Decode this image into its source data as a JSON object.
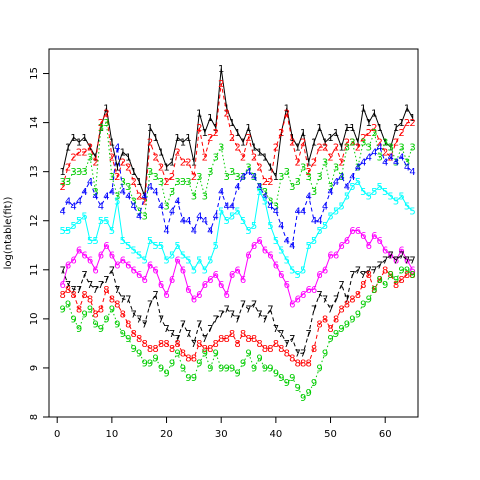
{
  "chart_data": {
    "type": "line",
    "title": "",
    "xlabel": "",
    "ylabel": "log(ntable(fit))",
    "xlim": [
      -1.5,
      66
    ],
    "ylim": [
      8,
      15.5
    ],
    "xticks": [
      0,
      10,
      20,
      30,
      40,
      50,
      60
    ],
    "yticks": [
      8,
      9,
      10,
      11,
      12,
      13,
      14,
      15
    ],
    "x": [
      1,
      2,
      3,
      4,
      5,
      6,
      7,
      8,
      9,
      10,
      11,
      12,
      13,
      14,
      15,
      16,
      17,
      18,
      19,
      20,
      21,
      22,
      23,
      24,
      25,
      26,
      27,
      28,
      29,
      30,
      31,
      32,
      33,
      34,
      35,
      36,
      37,
      38,
      39,
      40,
      41,
      42,
      43,
      44,
      45,
      46,
      47,
      48,
      49,
      50,
      51,
      52,
      53,
      54,
      55,
      56,
      57,
      58,
      59,
      60,
      61,
      62,
      63,
      64,
      65
    ],
    "series": [
      {
        "name": "1",
        "color": "#000000",
        "line_style": "solid",
        "values": [
          13.0,
          13.5,
          13.7,
          13.6,
          13.7,
          13.5,
          13.3,
          13.9,
          14.3,
          13.6,
          13.1,
          13.4,
          13.3,
          13.0,
          12.8,
          12.5,
          13.9,
          13.7,
          13.4,
          13.1,
          13.2,
          13.7,
          13.6,
          13.7,
          13.2,
          14.2,
          13.8,
          14.1,
          13.9,
          15.1,
          14.3,
          14.0,
          13.8,
          13.6,
          13.9,
          13.5,
          13.4,
          13.3,
          13.1,
          12.9,
          13.8,
          14.3,
          13.7,
          13.5,
          13.8,
          13.2,
          13.6,
          13.9,
          13.6,
          13.7,
          13.8,
          13.5,
          13.9,
          13.9,
          13.6,
          14.3,
          14.0,
          14.2,
          13.9,
          13.6,
          13.5,
          13.9,
          14.0,
          14.3,
          14.1
        ]
      },
      {
        "name": "2",
        "color": "#ff0000",
        "line_style": "dashed",
        "values": [
          12.7,
          13.1,
          13.3,
          13.4,
          13.4,
          13.5,
          13.2,
          14.0,
          14.2,
          13.3,
          12.9,
          13.2,
          13.1,
          12.8,
          12.5,
          12.4,
          13.6,
          13.3,
          13.1,
          12.8,
          12.9,
          13.4,
          13.2,
          13.2,
          12.9,
          13.9,
          13.3,
          13.7,
          13.8,
          14.8,
          14.2,
          13.7,
          13.5,
          13.3,
          13.7,
          13.3,
          13.1,
          12.8,
          12.8,
          13.5,
          13.8,
          14.2,
          13.6,
          13.2,
          13.6,
          13.0,
          13.2,
          13.5,
          13.5,
          13.3,
          13.5,
          13.2,
          13.6,
          13.6,
          13.5,
          13.7,
          13.8,
          13.9,
          13.6,
          13.4,
          13.3,
          13.6,
          13.8,
          14.0,
          14.0
        ]
      },
      {
        "name": "3",
        "color": "#00cc00",
        "line_style": "dotted",
        "values": [
          12.8,
          12.8,
          13.0,
          13.0,
          13.0,
          13.3,
          12.6,
          13.9,
          14.0,
          12.9,
          12.5,
          12.8,
          12.7,
          12.4,
          12.2,
          12.1,
          13.0,
          12.9,
          12.8,
          12.3,
          12.6,
          12.8,
          12.8,
          12.8,
          12.5,
          12.9,
          12.5,
          13.0,
          13.3,
          13.5,
          12.9,
          13.0,
          12.9,
          12.9,
          13.1,
          12.9,
          12.7,
          12.6,
          12.4,
          12.3,
          12.9,
          13.0,
          12.7,
          12.8,
          13.1,
          12.9,
          12.6,
          12.9,
          13.2,
          12.7,
          13.1,
          12.9,
          13.5,
          13.6,
          13.1,
          13.6,
          13.5,
          13.8,
          13.3,
          13.6,
          13.5,
          13.2,
          13.5,
          13.2,
          13.5
        ]
      },
      {
        "name": "4",
        "color": "#0000ff",
        "line_style": "dashed",
        "values": [
          12.2,
          12.4,
          12.3,
          12.4,
          12.6,
          12.8,
          12.5,
          12.3,
          12.5,
          12.6,
          13.5,
          12.6,
          12.5,
          12.3,
          12.1,
          12.5,
          12.7,
          12.6,
          12.3,
          11.8,
          12.2,
          12.4,
          12.0,
          12.0,
          11.8,
          12.1,
          12.0,
          11.8,
          12.1,
          12.6,
          12.3,
          12.3,
          12.7,
          12.9,
          13.0,
          12.9,
          12.7,
          12.5,
          12.3,
          12.2,
          11.9,
          11.6,
          11.5,
          12.2,
          12.2,
          12.5,
          12.0,
          12.0,
          12.3,
          12.6,
          12.8,
          12.9,
          12.7,
          12.9,
          13.1,
          13.2,
          13.3,
          13.4,
          13.5,
          13.2,
          13.3,
          13.2,
          13.3,
          13.1,
          13.0
        ]
      },
      {
        "name": "5",
        "color": "#00ffff",
        "line_style": "solid",
        "values": [
          11.8,
          11.8,
          11.9,
          12.0,
          12.1,
          11.6,
          11.6,
          12.0,
          12.0,
          11.8,
          12.4,
          11.6,
          11.5,
          11.4,
          11.3,
          11.2,
          11.6,
          11.5,
          11.5,
          11.2,
          11.3,
          11.5,
          11.3,
          11.2,
          11.0,
          11.2,
          11.0,
          11.2,
          11.5,
          12.2,
          12.0,
          12.1,
          12.2,
          12.0,
          11.8,
          11.9,
          12.6,
          12.4,
          11.9,
          11.6,
          11.4,
          11.2,
          11.0,
          10.9,
          11.0,
          11.5,
          11.6,
          11.8,
          11.9,
          12.1,
          12.2,
          12.3,
          12.5,
          12.7,
          12.8,
          12.6,
          12.5,
          12.6,
          12.7,
          12.6,
          12.5,
          12.4,
          12.5,
          12.3,
          12.2
        ]
      },
      {
        "name": "6",
        "color": "#ff00ff",
        "line_style": "solid",
        "values": [
          10.7,
          11.1,
          11.2,
          11.4,
          11.3,
          11.2,
          11.0,
          11.3,
          11.5,
          11.3,
          11.1,
          11.2,
          11.1,
          11.0,
          10.9,
          10.8,
          11.1,
          11.0,
          10.7,
          10.5,
          10.8,
          11.2,
          11.0,
          10.6,
          10.4,
          10.5,
          10.7,
          10.8,
          10.9,
          10.7,
          10.5,
          10.9,
          11.0,
          10.8,
          11.3,
          11.5,
          11.6,
          11.4,
          11.3,
          11.1,
          10.9,
          10.7,
          10.3,
          10.4,
          10.5,
          10.6,
          10.6,
          10.9,
          11.0,
          11.3,
          11.3,
          11.5,
          11.6,
          11.8,
          11.8,
          11.7,
          11.5,
          11.7,
          11.6,
          11.4,
          11.3,
          11.2,
          11.4,
          11.2,
          11.0
        ]
      },
      {
        "name": "7",
        "color": "#000000",
        "line_style": "dashed",
        "values": [
          11.0,
          10.7,
          10.6,
          10.6,
          10.9,
          10.7,
          10.6,
          10.7,
          10.8,
          11.0,
          10.6,
          10.4,
          10.4,
          10.1,
          10.0,
          9.9,
          10.3,
          10.5,
          10.0,
          9.8,
          9.7,
          9.6,
          9.9,
          9.7,
          9.5,
          9.9,
          9.6,
          9.8,
          10.0,
          10.1,
          10.2,
          10.1,
          10.0,
          10.3,
          10.2,
          10.3,
          10.1,
          10.0,
          10.2,
          9.8,
          9.7,
          9.5,
          9.6,
          9.3,
          9.3,
          9.7,
          10.2,
          10.5,
          10.4,
          10.2,
          10.4,
          10.7,
          10.4,
          10.9,
          11.0,
          10.9,
          11.0,
          11.0,
          11.1,
          11.2,
          11.3,
          11.2,
          11.3,
          11.2,
          11.2
        ]
      },
      {
        "name": "8",
        "color": "#ff0000",
        "line_style": "dashed",
        "values": [
          10.5,
          10.6,
          10.5,
          10.2,
          10.5,
          10.4,
          10.1,
          10.2,
          10.6,
          10.4,
          10.3,
          10.1,
          9.9,
          9.7,
          9.6,
          9.5,
          9.4,
          9.4,
          9.5,
          9.5,
          9.4,
          9.5,
          9.3,
          9.2,
          9.2,
          9.5,
          9.4,
          9.4,
          9.5,
          9.6,
          9.6,
          9.7,
          9.5,
          9.7,
          9.6,
          9.6,
          9.5,
          9.4,
          9.4,
          9.5,
          9.4,
          9.3,
          9.2,
          9.1,
          9.1,
          9.1,
          9.4,
          9.9,
          10.0,
          9.8,
          10.0,
          10.2,
          10.3,
          10.4,
          10.5,
          10.7,
          10.9,
          10.6,
          10.8,
          11.0,
          10.9,
          10.7,
          10.8,
          10.9,
          10.9
        ]
      },
      {
        "name": "9",
        "color": "#00cc00",
        "line_style": "dotted",
        "values": [
          10.2,
          10.3,
          10.0,
          9.8,
          10.1,
          10.2,
          9.9,
          9.8,
          10.0,
          10.2,
          9.9,
          9.7,
          9.6,
          9.4,
          9.3,
          9.1,
          9.1,
          9.2,
          9.0,
          8.9,
          9.1,
          9.3,
          9.0,
          8.8,
          8.8,
          9.1,
          9.3,
          9.0,
          9.3,
          9.0,
          9.0,
          9.0,
          8.9,
          9.1,
          9.3,
          9.0,
          9.2,
          9.0,
          9.0,
          8.9,
          8.8,
          8.7,
          8.8,
          8.6,
          8.4,
          8.5,
          8.7,
          9.0,
          9.3,
          9.6,
          9.7,
          9.8,
          9.9,
          10.0,
          10.1,
          10.3,
          10.4,
          10.6,
          10.8,
          10.7,
          10.9,
          10.8,
          11.0,
          11.0,
          10.9
        ]
      }
    ],
    "legend": "none",
    "grid": false
  }
}
